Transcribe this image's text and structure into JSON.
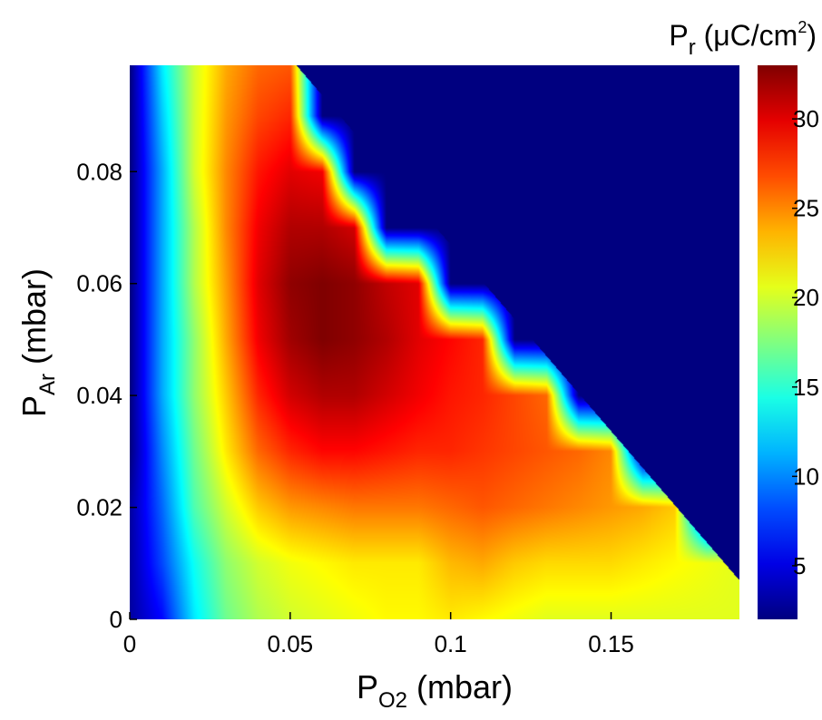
{
  "chart_data": {
    "type": "heatmap",
    "title": "",
    "xlabel": {
      "main": "P",
      "sub": "O2",
      "unit": " (mbar)"
    },
    "ylabel": {
      "main": "P",
      "sub": "Ar",
      "unit": " (mbar)"
    },
    "colorbar_label": {
      "main": "P",
      "sub": "r",
      "unit_pre": " (μC/cm",
      "sup": "2",
      "unit_post": ")"
    },
    "xlim": [
      0,
      0.19
    ],
    "ylim": [
      0,
      0.099
    ],
    "clim": [
      2,
      33
    ],
    "colormap": "jet",
    "x_ticks": [
      0,
      0.05,
      0.1,
      0.15
    ],
    "x_tick_labels": [
      "0",
      "0.05",
      "0.1",
      "0.15"
    ],
    "y_ticks": [
      0,
      0.02,
      0.04,
      0.06,
      0.08
    ],
    "y_tick_labels": [
      "0",
      "0.02",
      "0.04",
      "0.06",
      "0.08"
    ],
    "c_ticks": [
      5,
      10,
      15,
      20,
      25,
      30
    ],
    "c_tick_labels": [
      "5",
      "10",
      "15",
      "20",
      "25",
      "30"
    ],
    "masked_region": {
      "description_value": 2,
      "boundary_line": [
        [
          0.052,
          0.099
        ],
        [
          0.19,
          0.007
        ]
      ]
    },
    "x": [
      0,
      0.01,
      0.02,
      0.03,
      0.04,
      0.05,
      0.06,
      0.07,
      0.08,
      0.09,
      0.1,
      0.11,
      0.12,
      0.13,
      0.14,
      0.15,
      0.16,
      0.17,
      0.18,
      0.19
    ],
    "y": [
      0,
      0.01,
      0.02,
      0.03,
      0.04,
      0.05,
      0.06,
      0.07,
      0.08,
      0.09,
      0.099
    ],
    "z": [
      [
        3,
        6,
        13,
        17,
        19,
        20,
        20.5,
        21,
        21.5,
        21.5,
        22,
        21.5,
        21,
        20.5,
        20.5,
        20.5,
        20.5,
        20.5,
        20.5,
        20.5
      ],
      [
        3,
        8,
        14,
        18,
        20,
        21,
        21.5,
        22,
        22,
        22,
        23.5,
        24,
        23,
        22.5,
        22.5,
        22.5,
        22,
        21.5,
        21,
        20.5
      ],
      [
        3,
        9,
        16,
        20,
        23,
        24.5,
        25,
        25.5,
        25.5,
        25.5,
        26,
        26.5,
        26,
        25.5,
        25,
        24.5,
        24,
        23,
        2,
        2
      ],
      [
        2,
        10,
        17,
        22,
        26,
        28,
        29,
        29,
        28.5,
        28,
        28,
        27.5,
        27,
        26.5,
        26,
        25,
        2,
        2,
        2,
        2
      ],
      [
        2,
        11,
        18,
        23,
        28,
        30.5,
        31.5,
        31.5,
        30.5,
        29.5,
        28.5,
        28,
        27,
        26,
        2,
        2,
        2,
        2,
        2,
        2
      ],
      [
        2,
        11,
        18,
        24,
        29.5,
        32,
        33,
        32.5,
        31.5,
        30,
        29,
        28,
        2,
        2,
        2,
        2,
        2,
        2,
        2,
        2
      ],
      [
        2,
        11,
        19,
        24.5,
        30,
        32.5,
        33,
        32.5,
        31,
        30,
        2,
        2,
        2,
        2,
        2,
        2,
        2,
        2,
        2,
        2
      ],
      [
        2,
        11,
        19,
        25,
        29.5,
        31.5,
        31.5,
        30.5,
        2,
        2,
        2,
        2,
        2,
        2,
        2,
        2,
        2,
        2,
        2,
        2
      ],
      [
        2,
        11,
        20,
        25,
        28.5,
        30,
        29.5,
        2,
        2,
        2,
        2,
        2,
        2,
        2,
        2,
        2,
        2,
        2,
        2,
        2
      ],
      [
        2,
        12,
        20,
        24.5,
        27,
        28,
        2,
        2,
        2,
        2,
        2,
        2,
        2,
        2,
        2,
        2,
        2,
        2,
        2,
        2
      ],
      [
        2,
        13,
        20,
        24,
        26,
        26.5,
        2,
        2,
        2,
        2,
        2,
        2,
        2,
        2,
        2,
        2,
        2,
        2,
        2,
        2
      ]
    ]
  }
}
